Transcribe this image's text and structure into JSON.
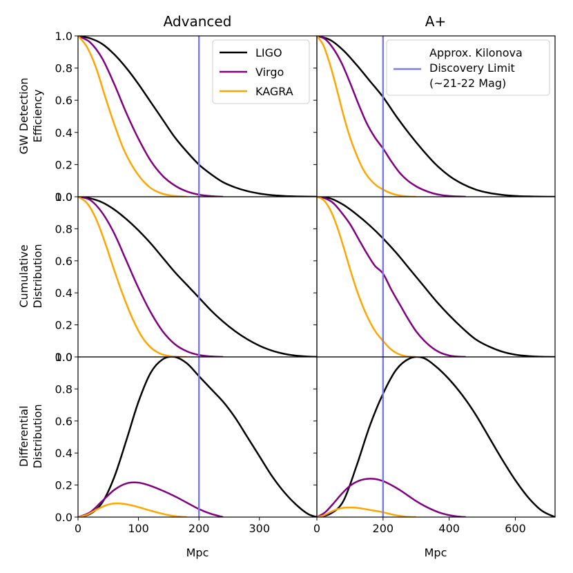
{
  "chart_data": {
    "type": "line",
    "column_titles": [
      "Advanced",
      "A+"
    ],
    "row_ylabels": [
      [
        "GW Detection",
        "Efficiency"
      ],
      [
        "Cumulative",
        "Distribution"
      ],
      [
        "Differential",
        "Distribution"
      ]
    ],
    "xlabel": "Mpc",
    "ylim": [
      0,
      1
    ],
    "yticks": [
      0.0,
      0.2,
      0.4,
      0.6,
      0.8,
      1.0
    ],
    "ytick_labels": [
      "0.0",
      "0.2",
      "0.4",
      "0.6",
      "0.8",
      "1.0"
    ],
    "colors": {
      "LIGO": "#000000",
      "Virgo": "#800080",
      "KAGRA": "#ffa500",
      "limit": "#7b7bf0"
    },
    "columns": [
      {
        "title": "Advanced",
        "xlim": [
          0,
          395
        ],
        "xticks": [
          0,
          100,
          200,
          300
        ],
        "xtick_labels": [
          "0",
          "100",
          "200",
          "300"
        ],
        "limit_x": 200,
        "legend": {
          "position": "top-right",
          "entries": [
            "LIGO",
            "Virgo",
            "KAGRA"
          ]
        },
        "panels": [
          {
            "name": "efficiency",
            "series": [
              {
                "name": "LIGO",
                "x": [
                  0,
                  20,
                  40,
                  60,
                  80,
                  100,
                  120,
                  140,
                  160,
                  180,
                  200,
                  220,
                  240,
                  260,
                  280,
                  300,
                  320,
                  340,
                  360,
                  380,
                  395
                ],
                "y": [
                  1.0,
                  0.985,
                  0.95,
                  0.885,
                  0.8,
                  0.7,
                  0.59,
                  0.48,
                  0.37,
                  0.28,
                  0.2,
                  0.14,
                  0.09,
                  0.058,
                  0.035,
                  0.02,
                  0.01,
                  0.005,
                  0.002,
                  0.0005,
                  0.0
                ]
              },
              {
                "name": "Virgo",
                "x": [
                  0,
                  20,
                  40,
                  60,
                  80,
                  100,
                  120,
                  140,
                  160,
                  180,
                  200,
                  220,
                  240
                ],
                "y": [
                  1.0,
                  0.96,
                  0.86,
                  0.7,
                  0.52,
                  0.36,
                  0.225,
                  0.13,
                  0.07,
                  0.033,
                  0.013,
                  0.004,
                  0.0
                ]
              },
              {
                "name": "KAGRA",
                "x": [
                  0,
                  15,
                  30,
                  45,
                  60,
                  75,
                  90,
                  105,
                  120,
                  135,
                  150,
                  165,
                  180
                ],
                "y": [
                  1.0,
                  0.93,
                  0.8,
                  0.62,
                  0.45,
                  0.3,
                  0.19,
                  0.11,
                  0.055,
                  0.025,
                  0.01,
                  0.003,
                  0.0
                ]
              }
            ]
          },
          {
            "name": "cumulative",
            "series": [
              {
                "name": "LIGO",
                "x": [
                  0,
                  20,
                  40,
                  60,
                  80,
                  100,
                  120,
                  140,
                  160,
                  180,
                  200,
                  220,
                  240,
                  260,
                  280,
                  300,
                  320,
                  340,
                  360,
                  380,
                  395
                ],
                "y": [
                  1.0,
                  0.99,
                  0.965,
                  0.92,
                  0.86,
                  0.79,
                  0.71,
                  0.62,
                  0.53,
                  0.45,
                  0.37,
                  0.29,
                  0.22,
                  0.16,
                  0.11,
                  0.07,
                  0.04,
                  0.02,
                  0.008,
                  0.002,
                  0.0
                ]
              },
              {
                "name": "Virgo",
                "x": [
                  0,
                  20,
                  40,
                  60,
                  80,
                  100,
                  120,
                  140,
                  160,
                  180,
                  200,
                  220,
                  240
                ],
                "y": [
                  1.0,
                  0.98,
                  0.9,
                  0.77,
                  0.6,
                  0.43,
                  0.28,
                  0.16,
                  0.08,
                  0.035,
                  0.012,
                  0.003,
                  0.0
                ]
              },
              {
                "name": "KAGRA",
                "x": [
                  0,
                  15,
                  30,
                  45,
                  60,
                  75,
                  90,
                  105,
                  120,
                  135,
                  150,
                  165,
                  180
                ],
                "y": [
                  1.0,
                  0.96,
                  0.86,
                  0.71,
                  0.54,
                  0.38,
                  0.24,
                  0.13,
                  0.06,
                  0.022,
                  0.006,
                  0.001,
                  0.0
                ]
              }
            ]
          },
          {
            "name": "differential",
            "series": [
              {
                "name": "LIGO",
                "x": [
                  0,
                  20,
                  40,
                  60,
                  80,
                  100,
                  120,
                  140,
                  160,
                  180,
                  200,
                  220,
                  240,
                  260,
                  280,
                  300,
                  320,
                  340,
                  360,
                  380,
                  395
                ],
                "y": [
                  0.0,
                  0.02,
                  0.09,
                  0.25,
                  0.48,
                  0.72,
                  0.9,
                  0.985,
                  1.0,
                  0.96,
                  0.88,
                  0.8,
                  0.72,
                  0.62,
                  0.5,
                  0.38,
                  0.26,
                  0.16,
                  0.08,
                  0.02,
                  0.0
                ]
              },
              {
                "name": "Virgo",
                "x": [
                  0,
                  20,
                  40,
                  60,
                  80,
                  100,
                  120,
                  140,
                  160,
                  180,
                  200,
                  220,
                  240
                ],
                "y": [
                  0.0,
                  0.03,
                  0.1,
                  0.17,
                  0.21,
                  0.215,
                  0.195,
                  0.165,
                  0.13,
                  0.09,
                  0.05,
                  0.02,
                  0.0
                ]
              },
              {
                "name": "KAGRA",
                "x": [
                  0,
                  15,
                  30,
                  45,
                  60,
                  75,
                  90,
                  105,
                  120,
                  135,
                  150,
                  165,
                  180
                ],
                "y": [
                  0.0,
                  0.015,
                  0.045,
                  0.072,
                  0.085,
                  0.083,
                  0.072,
                  0.057,
                  0.04,
                  0.025,
                  0.012,
                  0.004,
                  0.0
                ]
              }
            ]
          }
        ]
      },
      {
        "title": "A+",
        "xlim": [
          0,
          720
        ],
        "xticks": [
          0,
          200,
          400,
          600
        ],
        "xtick_labels": [
          "0",
          "200",
          "400",
          "600"
        ],
        "limit_x": 200,
        "legend": {
          "position": "top-right",
          "entries": [
            "Approx. Kilonova",
            "Discovery Limit",
            "(~21-22 Mag)"
          ]
        },
        "panels": [
          {
            "name": "efficiency",
            "series": [
              {
                "name": "LIGO",
                "x": [
                  0,
                  40,
                  80,
                  120,
                  160,
                  200,
                  240,
                  280,
                  320,
                  360,
                  400,
                  440,
                  480,
                  520,
                  560,
                  600,
                  640,
                  680,
                  720
                ],
                "y": [
                  1.0,
                  0.975,
                  0.91,
                  0.82,
                  0.72,
                  0.62,
                  0.5,
                  0.39,
                  0.29,
                  0.2,
                  0.13,
                  0.08,
                  0.045,
                  0.024,
                  0.012,
                  0.005,
                  0.002,
                  0.0005,
                  0.0
                ]
              },
              {
                "name": "Virgo",
                "x": [
                  0,
                  25,
                  50,
                  75,
                  100,
                  125,
                  150,
                  175,
                  200,
                  225,
                  250,
                  275,
                  300,
                  325,
                  350,
                  375,
                  400,
                  425,
                  450
                ],
                "y": [
                  1.0,
                  0.98,
                  0.92,
                  0.83,
                  0.71,
                  0.58,
                  0.46,
                  0.37,
                  0.3,
                  0.22,
                  0.15,
                  0.1,
                  0.065,
                  0.04,
                  0.022,
                  0.011,
                  0.005,
                  0.002,
                  0.0
                ]
              },
              {
                "name": "KAGRA",
                "x": [
                  0,
                  20,
                  40,
                  60,
                  80,
                  100,
                  120,
                  140,
                  160,
                  180,
                  200,
                  220,
                  240,
                  260,
                  280,
                  300
                ],
                "y": [
                  1.0,
                  0.94,
                  0.82,
                  0.67,
                  0.51,
                  0.37,
                  0.26,
                  0.17,
                  0.11,
                  0.07,
                  0.045,
                  0.025,
                  0.012,
                  0.005,
                  0.001,
                  0.0
                ]
              }
            ]
          },
          {
            "name": "cumulative",
            "series": [
              {
                "name": "LIGO",
                "x": [
                  0,
                  40,
                  80,
                  120,
                  160,
                  200,
                  240,
                  280,
                  320,
                  360,
                  400,
                  440,
                  480,
                  520,
                  560,
                  600,
                  640,
                  680,
                  720
                ],
                "y": [
                  1.0,
                  0.99,
                  0.95,
                  0.89,
                  0.82,
                  0.74,
                  0.65,
                  0.55,
                  0.45,
                  0.35,
                  0.26,
                  0.18,
                  0.11,
                  0.065,
                  0.033,
                  0.014,
                  0.005,
                  0.001,
                  0.0
                ]
              },
              {
                "name": "Virgo",
                "x": [
                  0,
                  25,
                  50,
                  75,
                  100,
                  125,
                  150,
                  175,
                  200,
                  225,
                  250,
                  275,
                  300,
                  325,
                  350,
                  375,
                  400,
                  425,
                  450
                ],
                "y": [
                  1.0,
                  0.99,
                  0.96,
                  0.9,
                  0.83,
                  0.74,
                  0.65,
                  0.57,
                  0.52,
                  0.42,
                  0.33,
                  0.24,
                  0.16,
                  0.1,
                  0.055,
                  0.025,
                  0.009,
                  0.002,
                  0.0
                ]
              },
              {
                "name": "KAGRA",
                "x": [
                  0,
                  20,
                  40,
                  60,
                  80,
                  100,
                  120,
                  140,
                  160,
                  180,
                  200,
                  220,
                  240,
                  260,
                  280,
                  300
                ],
                "y": [
                  1.0,
                  0.98,
                  0.92,
                  0.82,
                  0.69,
                  0.55,
                  0.42,
                  0.31,
                  0.22,
                  0.15,
                  0.1,
                  0.055,
                  0.025,
                  0.009,
                  0.002,
                  0.0
                ]
              }
            ]
          },
          {
            "name": "differential",
            "series": [
              {
                "name": "LIGO",
                "x": [
                  0,
                  40,
                  80,
                  120,
                  160,
                  200,
                  240,
                  280,
                  320,
                  360,
                  400,
                  440,
                  480,
                  520,
                  560,
                  600,
                  640,
                  680,
                  720
                ],
                "y": [
                  0.0,
                  0.02,
                  0.1,
                  0.32,
                  0.57,
                  0.77,
                  0.92,
                  0.99,
                  0.995,
                  0.94,
                  0.86,
                  0.76,
                  0.64,
                  0.5,
                  0.36,
                  0.23,
                  0.12,
                  0.04,
                  0.0
                ]
              },
              {
                "name": "Virgo",
                "x": [
                  0,
                  25,
                  50,
                  75,
                  100,
                  125,
                  150,
                  175,
                  200,
                  225,
                  250,
                  275,
                  300,
                  325,
                  350,
                  375,
                  400,
                  425,
                  450
                ],
                "y": [
                  0.0,
                  0.03,
                  0.085,
                  0.145,
                  0.195,
                  0.225,
                  0.238,
                  0.238,
                  0.225,
                  0.2,
                  0.17,
                  0.135,
                  0.1,
                  0.07,
                  0.045,
                  0.025,
                  0.012,
                  0.004,
                  0.0
                ]
              },
              {
                "name": "KAGRA",
                "x": [
                  0,
                  20,
                  40,
                  60,
                  80,
                  100,
                  120,
                  140,
                  160,
                  180,
                  200,
                  220,
                  240,
                  260,
                  280,
                  300
                ],
                "y": [
                  0.0,
                  0.01,
                  0.03,
                  0.048,
                  0.058,
                  0.06,
                  0.058,
                  0.052,
                  0.045,
                  0.038,
                  0.03,
                  0.02,
                  0.011,
                  0.005,
                  0.001,
                  0.0
                ]
              }
            ]
          }
        ]
      }
    ]
  }
}
